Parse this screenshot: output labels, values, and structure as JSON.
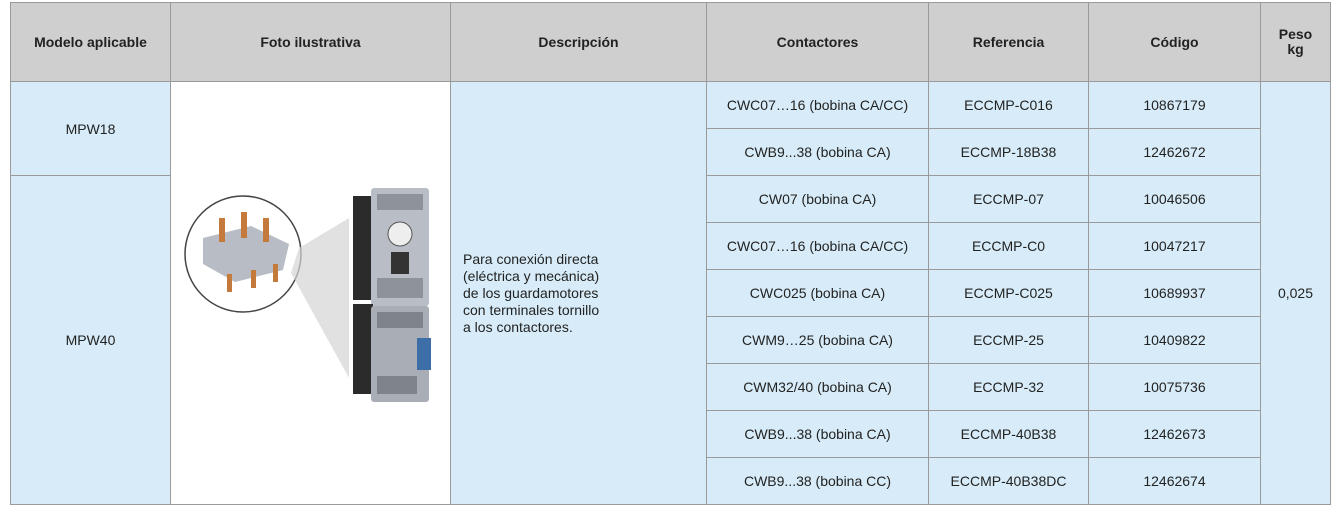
{
  "table": {
    "headers": [
      "Modelo aplicable",
      "Foto ilustrativa",
      "Descripción",
      "Contactores",
      "Referencia",
      "Código",
      "Peso\nkg"
    ],
    "models": [
      {
        "name": "MPW18",
        "span": 2
      },
      {
        "name": "MPW40",
        "span": 7
      }
    ],
    "description": "Para conexión directa\n(eléctrica y mecánica)\nde los guardamotores\ncon terminales tornillo\na los contactores.",
    "rows": [
      [
        "CWC07…16 (bobina CA/CC)",
        "ECCMP-C016",
        "10867179"
      ],
      [
        "CWB9...38 (bobina CA)",
        "ECCMP-18B38",
        "12462672"
      ],
      [
        "CW07 (bobina CA)",
        "ECCMP-07",
        "10046506"
      ],
      [
        "CWC07…16 (bobina CA/CC)",
        "ECCMP-C0",
        "10047217"
      ],
      [
        "CWC025 (bobina CA)",
        "ECCMP-C025",
        "10689937"
      ],
      [
        "CWM9…25 (bobina CA)",
        "ECCMP-25",
        "10409822"
      ],
      [
        "CWM32/40 (bobina CA)",
        "ECCMP-32",
        "10075736"
      ],
      [
        "CWB9...38 (bobina CA)",
        "ECCMP-40B38",
        "12462673"
      ],
      [
        "CWB9...38 (bobina CC)",
        "ECCMP-40B38DC",
        "12462674"
      ]
    ],
    "weight": "0,025"
  }
}
